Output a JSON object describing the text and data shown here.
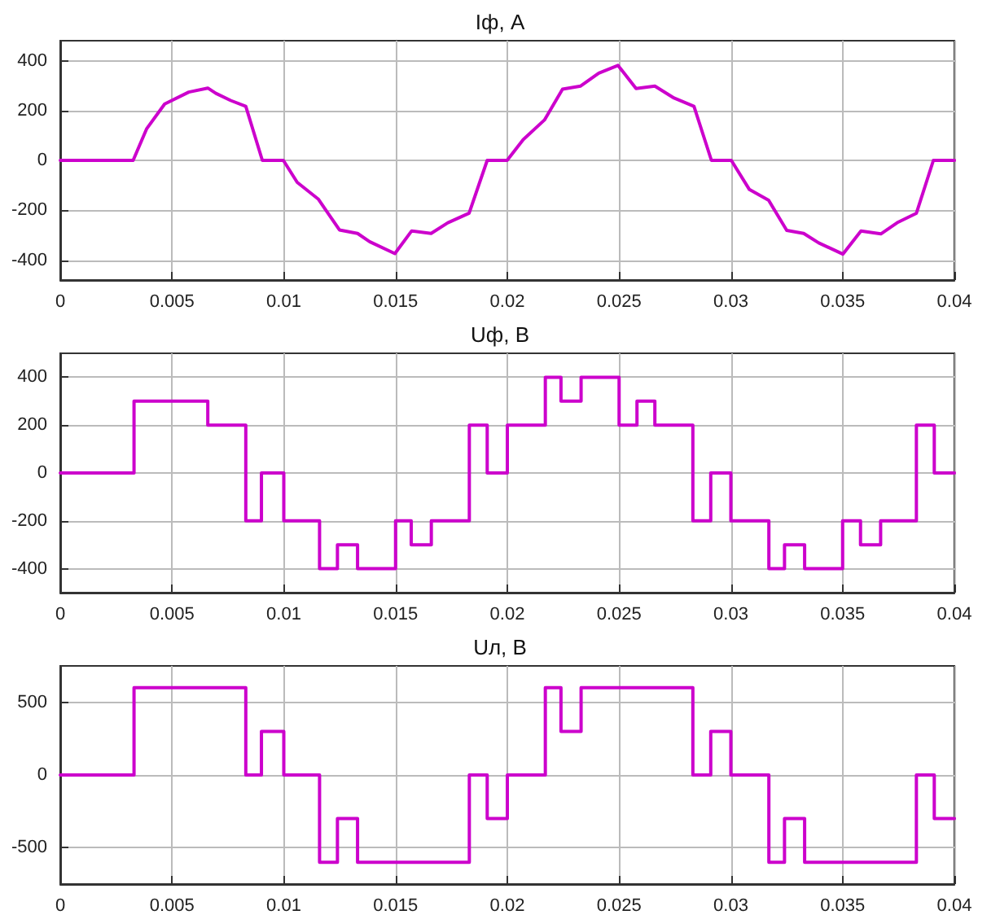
{
  "chart_data": [
    {
      "type": "line",
      "title": "Iф, А",
      "xlim": [
        0,
        0.04
      ],
      "xticks": [
        0,
        0.005,
        0.01,
        0.015,
        0.02,
        0.025,
        0.03,
        0.035,
        0.04
      ],
      "ylim": [
        -480,
        480
      ],
      "yticks": [
        -400,
        -200,
        0,
        200,
        400
      ],
      "grid": true,
      "marker": "none",
      "line_style": "solid",
      "series": [
        {
          "color": "#cc00cc",
          "x": [
            0,
            0.00326,
            0.00386,
            0.00467,
            0.00575,
            0.0066,
            0.00696,
            0.00763,
            0.0083,
            0.00904,
            0.00998,
            0.0106,
            0.01154,
            0.01249,
            0.0133,
            0.01384,
            0.01497,
            0.01572,
            0.01659,
            0.01734,
            0.01829,
            0.0191,
            0.01999,
            0.02071,
            0.02166,
            0.02247,
            0.02328,
            0.02409,
            0.02495,
            0.02576,
            0.0266,
            0.02746,
            0.02835,
            0.02913,
            0.03002,
            0.03083,
            0.03169,
            0.0325,
            0.03326,
            0.03393,
            0.03501,
            0.03582,
            0.03671,
            0.03744,
            0.0383,
            0.03906,
            0.04
          ],
          "values": [
            0,
            0,
            126,
            226,
            274,
            290,
            269,
            240,
            217,
            0,
            0,
            -88,
            -155,
            -279,
            -293,
            -326,
            -374,
            -283,
            -293,
            -250,
            -212,
            0,
            0,
            83,
            162,
            286,
            298,
            350,
            381,
            288,
            298,
            250,
            217,
            0,
            0,
            -117,
            -160,
            -281,
            -293,
            -331,
            -376,
            -283,
            -295,
            -250,
            -212,
            0,
            0
          ]
        }
      ]
    },
    {
      "type": "step",
      "title": "Uф, В",
      "xlim": [
        0,
        0.04
      ],
      "xticks": [
        0,
        0.005,
        0.01,
        0.015,
        0.02,
        0.025,
        0.03,
        0.035,
        0.04
      ],
      "ylim": [
        -500,
        500
      ],
      "yticks": [
        -400,
        -200,
        0,
        200,
        400
      ],
      "grid": true,
      "marker": "none",
      "line_style": "solid",
      "series": [
        {
          "color": "#cc00cc",
          "x": [
            0,
            0.0033,
            0.0066,
            0.0083,
            0.009,
            0.01,
            0.0116,
            0.0124,
            0.0133,
            0.015,
            0.0157,
            0.0166,
            0.0183,
            0.0191,
            0.02,
            0.0217,
            0.0224,
            0.0233,
            0.025,
            0.0258,
            0.0266,
            0.0283,
            0.0291,
            0.03,
            0.0317,
            0.0324,
            0.0333,
            0.035,
            0.0358,
            0.0367,
            0.0383,
            0.0391,
            0.04
          ],
          "values": [
            0,
            300,
            200,
            -200,
            0,
            -200,
            -400,
            -300,
            -400,
            -200,
            -300,
            -200,
            200,
            0,
            200,
            400,
            300,
            400,
            200,
            300,
            200,
            -200,
            0,
            -200,
            -400,
            -300,
            -400,
            -200,
            -300,
            -200,
            200,
            0,
            0
          ]
        }
      ]
    },
    {
      "type": "step",
      "title": "Uл, В",
      "xlim": [
        0,
        0.04
      ],
      "xticks": [
        0,
        0.005,
        0.01,
        0.015,
        0.02,
        0.025,
        0.03,
        0.035,
        0.04
      ],
      "ylim": [
        -750,
        750
      ],
      "yticks": [
        -500,
        0,
        500
      ],
      "grid": true,
      "marker": "none",
      "line_style": "solid",
      "series": [
        {
          "color": "#cc00cc",
          "x": [
            0,
            0.0033,
            0.0083,
            0.009,
            0.01,
            0.0116,
            0.0124,
            0.0133,
            0.0183,
            0.0191,
            0.02,
            0.0217,
            0.0224,
            0.0233,
            0.0283,
            0.0291,
            0.03,
            0.0317,
            0.0324,
            0.0333,
            0.0383,
            0.0391,
            0.04
          ],
          "values": [
            0,
            600,
            0,
            300,
            0,
            -600,
            -300,
            -600,
            0,
            -300,
            0,
            600,
            300,
            600,
            0,
            300,
            0,
            -600,
            -300,
            -600,
            0,
            -300,
            -300
          ]
        }
      ]
    }
  ]
}
